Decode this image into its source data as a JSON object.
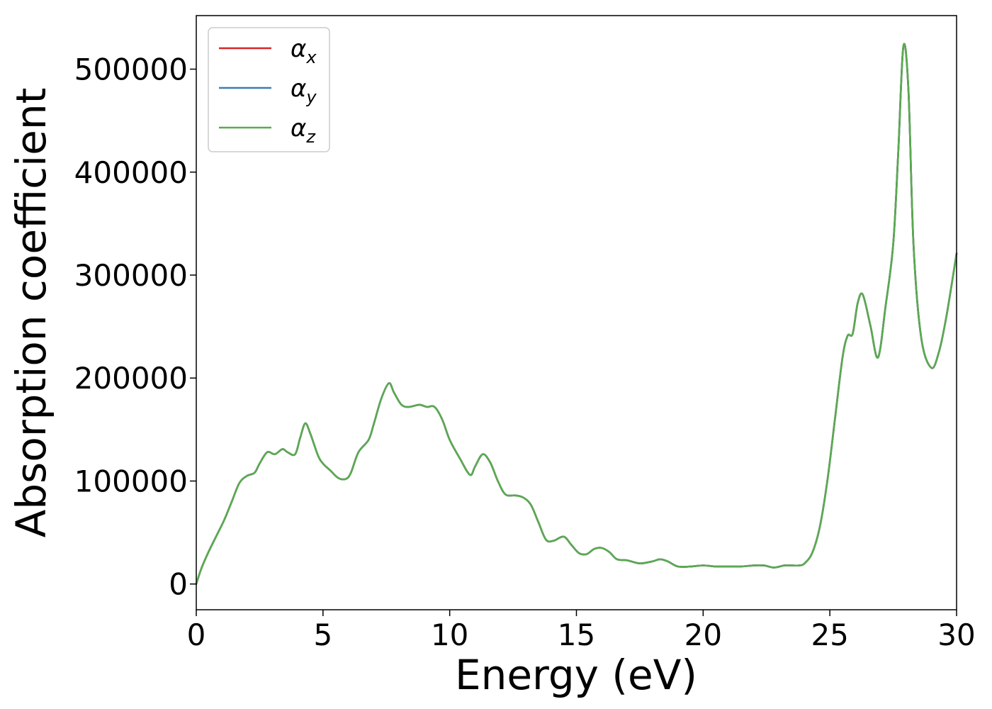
{
  "chart_data": {
    "type": "line",
    "xlabel": "Energy (eV)",
    "ylabel": "Absorption coefficient",
    "xlim": [
      0,
      30
    ],
    "ylim": [
      -25000,
      552000
    ],
    "xticks": [
      0,
      5,
      10,
      15,
      20,
      25,
      30
    ],
    "xtick_labels": [
      "0",
      "5",
      "10",
      "15",
      "20",
      "25",
      "30"
    ],
    "yticks": [
      0,
      100000,
      200000,
      300000,
      400000,
      500000
    ],
    "ytick_labels": [
      "0",
      "100000",
      "200000",
      "300000",
      "400000",
      "500000"
    ],
    "grid": false,
    "legend_position": "top-left",
    "series_style": [
      {
        "color": "#d62728",
        "legend_base": "α",
        "legend_sub": "x"
      },
      {
        "color": "#3a7fb5",
        "legend_base": "α",
        "legend_sub": "y"
      },
      {
        "color": "#5aaa50",
        "legend_base": "α",
        "legend_sub": "z"
      }
    ],
    "x": [
      0,
      0.2,
      0.5,
      0.8,
      1.1,
      1.4,
      1.7,
      2.0,
      2.3,
      2.5,
      2.8,
      3.1,
      3.4,
      3.6,
      3.9,
      4.1,
      4.3,
      4.5,
      4.8,
      5.0,
      5.3,
      5.6,
      5.9,
      6.1,
      6.4,
      6.8,
      7.0,
      7.3,
      7.6,
      7.8,
      8.1,
      8.4,
      8.8,
      9.1,
      9.4,
      9.7,
      10.0,
      10.4,
      10.8,
      11.0,
      11.3,
      11.6,
      11.9,
      12.2,
      12.6,
      12.9,
      13.2,
      13.5,
      13.8,
      14.1,
      14.5,
      14.8,
      15.1,
      15.4,
      15.7,
      16.0,
      16.3,
      16.6,
      17.0,
      17.5,
      18.0,
      18.3,
      18.6,
      19.0,
      19.5,
      20.0,
      20.5,
      21.0,
      21.5,
      22.0,
      22.4,
      22.8,
      23.2,
      23.5,
      23.8,
      24.0,
      24.3,
      24.6,
      24.9,
      25.2,
      25.5,
      25.7,
      25.9,
      26.1,
      26.3,
      26.6,
      26.9,
      27.2,
      27.5,
      27.7,
      27.9,
      28.1,
      28.3,
      28.6,
      29.0,
      29.3,
      29.6,
      30.0
    ],
    "series": [
      {
        "values": [
          0,
          15000,
          32000,
          47000,
          62000,
          80000,
          98000,
          105000,
          108000,
          117000,
          128000,
          126000,
          131000,
          128000,
          126000,
          142000,
          156000,
          146000,
          125000,
          117000,
          110000,
          103000,
          102000,
          108000,
          128000,
          140000,
          155000,
          180000,
          195000,
          186000,
          174000,
          172000,
          174000,
          172000,
          172000,
          160000,
          140000,
          122000,
          106000,
          114000,
          126000,
          118000,
          100000,
          87000,
          86000,
          84000,
          77000,
          60000,
          43000,
          42000,
          46000,
          38000,
          30000,
          29000,
          34000,
          35000,
          31000,
          24000,
          23000,
          20000,
          22000,
          24000,
          22000,
          17000,
          17000,
          18000,
          17000,
          17000,
          17000,
          18000,
          18000,
          16000,
          18000,
          18000,
          18000,
          20000,
          30000,
          55000,
          100000,
          160000,
          220000,
          241000,
          243000,
          273000,
          281000,
          251000,
          220000,
          270000,
          330000,
          420000,
          522000,
          480000,
          330000,
          240000,
          210000,
          225000,
          260000,
          321000
        ]
      },
      {
        "values": [
          0,
          15000,
          32000,
          47000,
          62000,
          80000,
          98000,
          105000,
          108000,
          117000,
          128000,
          126000,
          131000,
          128000,
          126000,
          142000,
          156000,
          146000,
          125000,
          117000,
          110000,
          103000,
          102000,
          108000,
          128000,
          140000,
          155000,
          180000,
          195000,
          186000,
          174000,
          172000,
          174000,
          172000,
          172000,
          160000,
          140000,
          122000,
          106000,
          114000,
          126000,
          118000,
          100000,
          87000,
          86000,
          84000,
          77000,
          60000,
          43000,
          42000,
          46000,
          38000,
          30000,
          29000,
          34000,
          35000,
          31000,
          24000,
          23000,
          20000,
          22000,
          24000,
          22000,
          17000,
          17000,
          18000,
          17000,
          17000,
          17000,
          18000,
          18000,
          16000,
          18000,
          18000,
          18000,
          20000,
          30000,
          55000,
          100000,
          160000,
          220000,
          241000,
          243000,
          273000,
          281000,
          251000,
          220000,
          270000,
          330000,
          420000,
          522000,
          480000,
          330000,
          240000,
          210000,
          225000,
          260000,
          321000
        ]
      },
      {
        "values": [
          0,
          15000,
          32000,
          47000,
          62000,
          80000,
          98000,
          105000,
          108000,
          117000,
          128000,
          126000,
          131000,
          128000,
          126000,
          142000,
          156000,
          146000,
          125000,
          117000,
          110000,
          103000,
          102000,
          108000,
          128000,
          140000,
          155000,
          180000,
          195000,
          186000,
          174000,
          172000,
          174000,
          172000,
          172000,
          160000,
          140000,
          122000,
          106000,
          114000,
          126000,
          118000,
          100000,
          87000,
          86000,
          84000,
          77000,
          60000,
          43000,
          42000,
          46000,
          38000,
          30000,
          29000,
          34000,
          35000,
          31000,
          24000,
          23000,
          20000,
          22000,
          24000,
          22000,
          17000,
          17000,
          18000,
          17000,
          17000,
          17000,
          18000,
          18000,
          16000,
          18000,
          18000,
          18000,
          20000,
          30000,
          55000,
          100000,
          160000,
          220000,
          241000,
          243000,
          273000,
          281000,
          251000,
          220000,
          270000,
          330000,
          420000,
          522000,
          480000,
          330000,
          240000,
          210000,
          225000,
          260000,
          321000
        ]
      }
    ]
  }
}
